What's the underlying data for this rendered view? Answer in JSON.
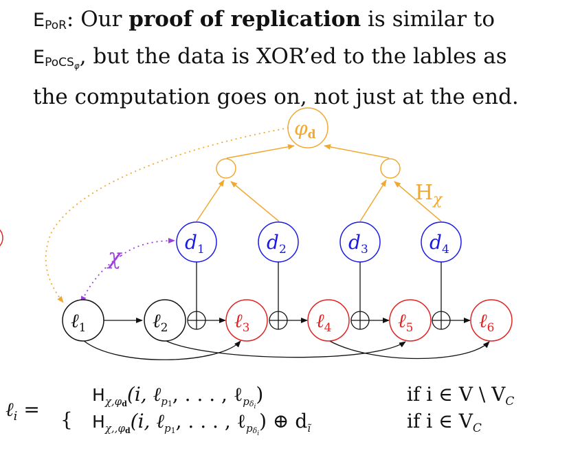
{
  "intro": {
    "term1": "E",
    "term1_sub": "PoR",
    "colon": ":",
    "part1": " Our ",
    "bold": "proof of replication",
    "part2": " is similar to",
    "term2": "E",
    "term2_sub": "PoCS",
    "term2_subsub": "φ",
    "part3": ", but the data is XOR’ed to the lables as",
    "line3": "the computation goes on, not just at the end."
  },
  "diagram": {
    "root_label": "φ",
    "root_sub": "d",
    "hash_label": "H",
    "hash_sub": "χ",
    "chi_label": "χ",
    "data_nodes": [
      {
        "label": "d",
        "sub": "1"
      },
      {
        "label": "d",
        "sub": "2"
      },
      {
        "label": "d",
        "sub": "3"
      },
      {
        "label": "d",
        "sub": "4"
      }
    ],
    "label_nodes": [
      {
        "label": "ℓ",
        "sub": "1"
      },
      {
        "label": "ℓ",
        "sub": "2"
      },
      {
        "label": "ℓ",
        "sub": "3"
      },
      {
        "label": "ℓ",
        "sub": "4"
      },
      {
        "label": "ℓ",
        "sub": "5"
      },
      {
        "label": "ℓ",
        "sub": "6"
      }
    ],
    "xor_symbol": "⊕"
  },
  "formula": {
    "lhs": "ℓ",
    "lhs_sub": "i",
    "equals": " =",
    "brace": "{",
    "case1_expr": "(i, ℓ",
    "case1_tail": ", . . . , ℓ",
    "case1_end": ")",
    "case1_cond": "if i ∈ V \\ V",
    "case1_cond_sub": "C",
    "case2_expr": "(i, ℓ",
    "case2_tail": ", . . . , ℓ",
    "case2_end": ") ⊕ d",
    "case2_cond": "if i ∈ V",
    "case2_cond_sub": "C",
    "H": "H",
    "H1_sub": "χ,φ",
    "H2_sub": "χ,,φ",
    "H_sub_d": "d",
    "p1_sub": "p",
    "p1_subsub": "1",
    "pdelta_sub": "p",
    "pdelta_subsub": "δ",
    "pdelta_i": "i",
    "d_sub": "ĩ"
  },
  "colors": {
    "orange": "#f0a830",
    "blue": "#1a1ae6",
    "red": "#e22222",
    "purple": "#9b3fe0",
    "black": "#111111"
  }
}
